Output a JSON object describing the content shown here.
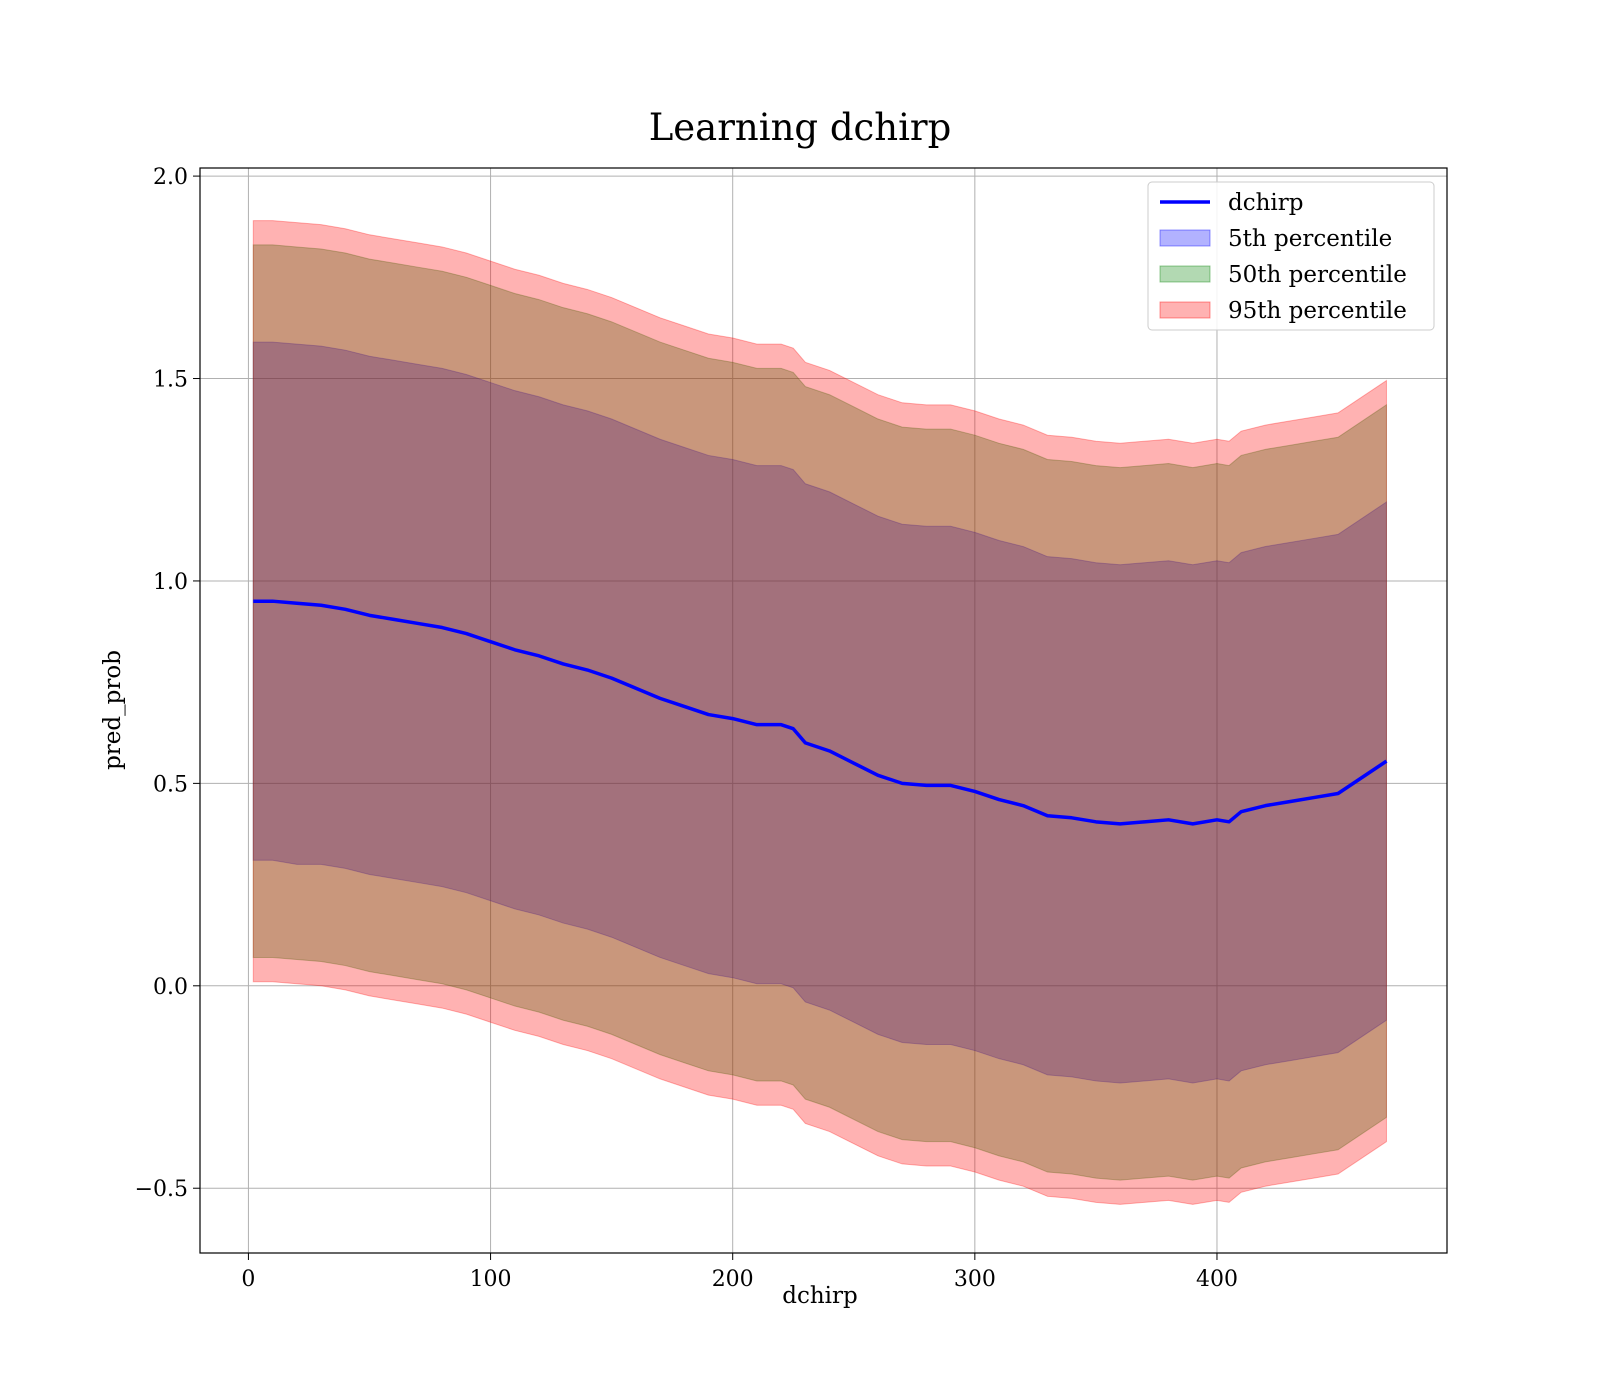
{
  "chart_data": {
    "type": "area",
    "title": "Learning dchirp",
    "xlabel": "dchirp",
    "ylabel": "pred_prob",
    "xlim": [
      -20,
      495
    ],
    "ylim": [
      -0.66,
      2.02
    ],
    "xticks": [
      0,
      100,
      200,
      300,
      400
    ],
    "xtick_labels": [
      "0",
      "100",
      "200",
      "300",
      "400"
    ],
    "yticks": [
      -0.5,
      0.0,
      0.5,
      1.0,
      1.5,
      2.0
    ],
    "ytick_labels": [
      "−0.5",
      "0.0",
      "0.5",
      "1.0",
      "1.5",
      "2.0"
    ],
    "grid": true,
    "legend_position": "top-right",
    "x": [
      2,
      10,
      20,
      30,
      40,
      50,
      60,
      70,
      80,
      90,
      100,
      110,
      120,
      130,
      140,
      150,
      160,
      170,
      180,
      190,
      200,
      210,
      220,
      225,
      230,
      240,
      250,
      260,
      270,
      280,
      290,
      300,
      310,
      320,
      330,
      340,
      350,
      360,
      370,
      380,
      390,
      400,
      405,
      410,
      420,
      430,
      440,
      450,
      470
    ],
    "series": [
      {
        "name": "dchirp",
        "kind": "line",
        "color": "#0000ff",
        "values": [
          0.95,
          0.95,
          0.945,
          0.94,
          0.93,
          0.915,
          0.905,
          0.895,
          0.885,
          0.87,
          0.85,
          0.83,
          0.815,
          0.795,
          0.78,
          0.76,
          0.735,
          0.71,
          0.69,
          0.67,
          0.66,
          0.645,
          0.645,
          0.635,
          0.6,
          0.58,
          0.55,
          0.52,
          0.5,
          0.495,
          0.495,
          0.48,
          0.46,
          0.445,
          0.42,
          0.415,
          0.405,
          0.4,
          0.405,
          0.41,
          0.4,
          0.41,
          0.405,
          0.43,
          0.445,
          0.455,
          0.465,
          0.475,
          0.555
        ]
      },
      {
        "name": "5th percentile",
        "kind": "band",
        "color": "#0000ff",
        "opacity": 0.3,
        "lower": [
          0.31,
          0.31,
          0.3,
          0.3,
          0.29,
          0.275,
          0.265,
          0.255,
          0.245,
          0.23,
          0.21,
          0.19,
          0.175,
          0.155,
          0.14,
          0.12,
          0.095,
          0.07,
          0.05,
          0.03,
          0.02,
          0.005,
          0.005,
          -0.005,
          -0.04,
          -0.06,
          -0.09,
          -0.12,
          -0.14,
          -0.145,
          -0.145,
          -0.16,
          -0.18,
          -0.195,
          -0.22,
          -0.225,
          -0.235,
          -0.24,
          -0.235,
          -0.23,
          -0.24,
          -0.23,
          -0.235,
          -0.21,
          -0.195,
          -0.185,
          -0.175,
          -0.165,
          -0.085
        ],
        "upper": [
          1.59,
          1.59,
          1.585,
          1.58,
          1.57,
          1.555,
          1.545,
          1.535,
          1.525,
          1.51,
          1.49,
          1.47,
          1.455,
          1.435,
          1.42,
          1.4,
          1.375,
          1.35,
          1.33,
          1.31,
          1.3,
          1.285,
          1.285,
          1.275,
          1.24,
          1.22,
          1.19,
          1.16,
          1.14,
          1.135,
          1.135,
          1.12,
          1.1,
          1.085,
          1.06,
          1.055,
          1.045,
          1.04,
          1.045,
          1.05,
          1.04,
          1.05,
          1.045,
          1.07,
          1.085,
          1.095,
          1.105,
          1.115,
          1.195
        ]
      },
      {
        "name": "50th percentile",
        "kind": "band",
        "color": "#008000",
        "opacity": 0.3,
        "lower": [
          0.07,
          0.07,
          0.065,
          0.06,
          0.05,
          0.035,
          0.025,
          0.015,
          0.005,
          -0.01,
          -0.03,
          -0.05,
          -0.065,
          -0.085,
          -0.1,
          -0.12,
          -0.145,
          -0.17,
          -0.19,
          -0.21,
          -0.22,
          -0.235,
          -0.235,
          -0.245,
          -0.28,
          -0.3,
          -0.33,
          -0.36,
          -0.38,
          -0.385,
          -0.385,
          -0.4,
          -0.42,
          -0.435,
          -0.46,
          -0.465,
          -0.475,
          -0.48,
          -0.475,
          -0.47,
          -0.48,
          -0.47,
          -0.475,
          -0.45,
          -0.435,
          -0.425,
          -0.415,
          -0.405,
          -0.325
        ],
        "upper": [
          1.83,
          1.83,
          1.825,
          1.82,
          1.81,
          1.795,
          1.785,
          1.775,
          1.765,
          1.75,
          1.73,
          1.71,
          1.695,
          1.675,
          1.66,
          1.64,
          1.615,
          1.59,
          1.57,
          1.55,
          1.54,
          1.525,
          1.525,
          1.515,
          1.48,
          1.46,
          1.43,
          1.4,
          1.38,
          1.375,
          1.375,
          1.36,
          1.34,
          1.325,
          1.3,
          1.295,
          1.285,
          1.28,
          1.285,
          1.29,
          1.28,
          1.29,
          1.285,
          1.31,
          1.325,
          1.335,
          1.345,
          1.355,
          1.435
        ]
      },
      {
        "name": "95th percentile",
        "kind": "band",
        "color": "#ff0000",
        "opacity": 0.3,
        "lower": [
          0.01,
          0.01,
          0.005,
          0.0,
          -0.01,
          -0.025,
          -0.035,
          -0.045,
          -0.055,
          -0.07,
          -0.09,
          -0.11,
          -0.125,
          -0.145,
          -0.16,
          -0.18,
          -0.205,
          -0.23,
          -0.25,
          -0.27,
          -0.28,
          -0.295,
          -0.295,
          -0.305,
          -0.34,
          -0.36,
          -0.39,
          -0.42,
          -0.44,
          -0.445,
          -0.445,
          -0.46,
          -0.48,
          -0.495,
          -0.52,
          -0.525,
          -0.535,
          -0.54,
          -0.535,
          -0.53,
          -0.54,
          -0.53,
          -0.535,
          -0.51,
          -0.495,
          -0.485,
          -0.475,
          -0.465,
          -0.385
        ],
        "upper": [
          1.89,
          1.89,
          1.885,
          1.88,
          1.87,
          1.855,
          1.845,
          1.835,
          1.825,
          1.81,
          1.79,
          1.77,
          1.755,
          1.735,
          1.72,
          1.7,
          1.675,
          1.65,
          1.63,
          1.61,
          1.6,
          1.585,
          1.585,
          1.575,
          1.54,
          1.52,
          1.49,
          1.46,
          1.44,
          1.435,
          1.435,
          1.42,
          1.4,
          1.385,
          1.36,
          1.355,
          1.345,
          1.34,
          1.345,
          1.35,
          1.34,
          1.35,
          1.345,
          1.37,
          1.385,
          1.395,
          1.405,
          1.415,
          1.495
        ]
      }
    ]
  }
}
